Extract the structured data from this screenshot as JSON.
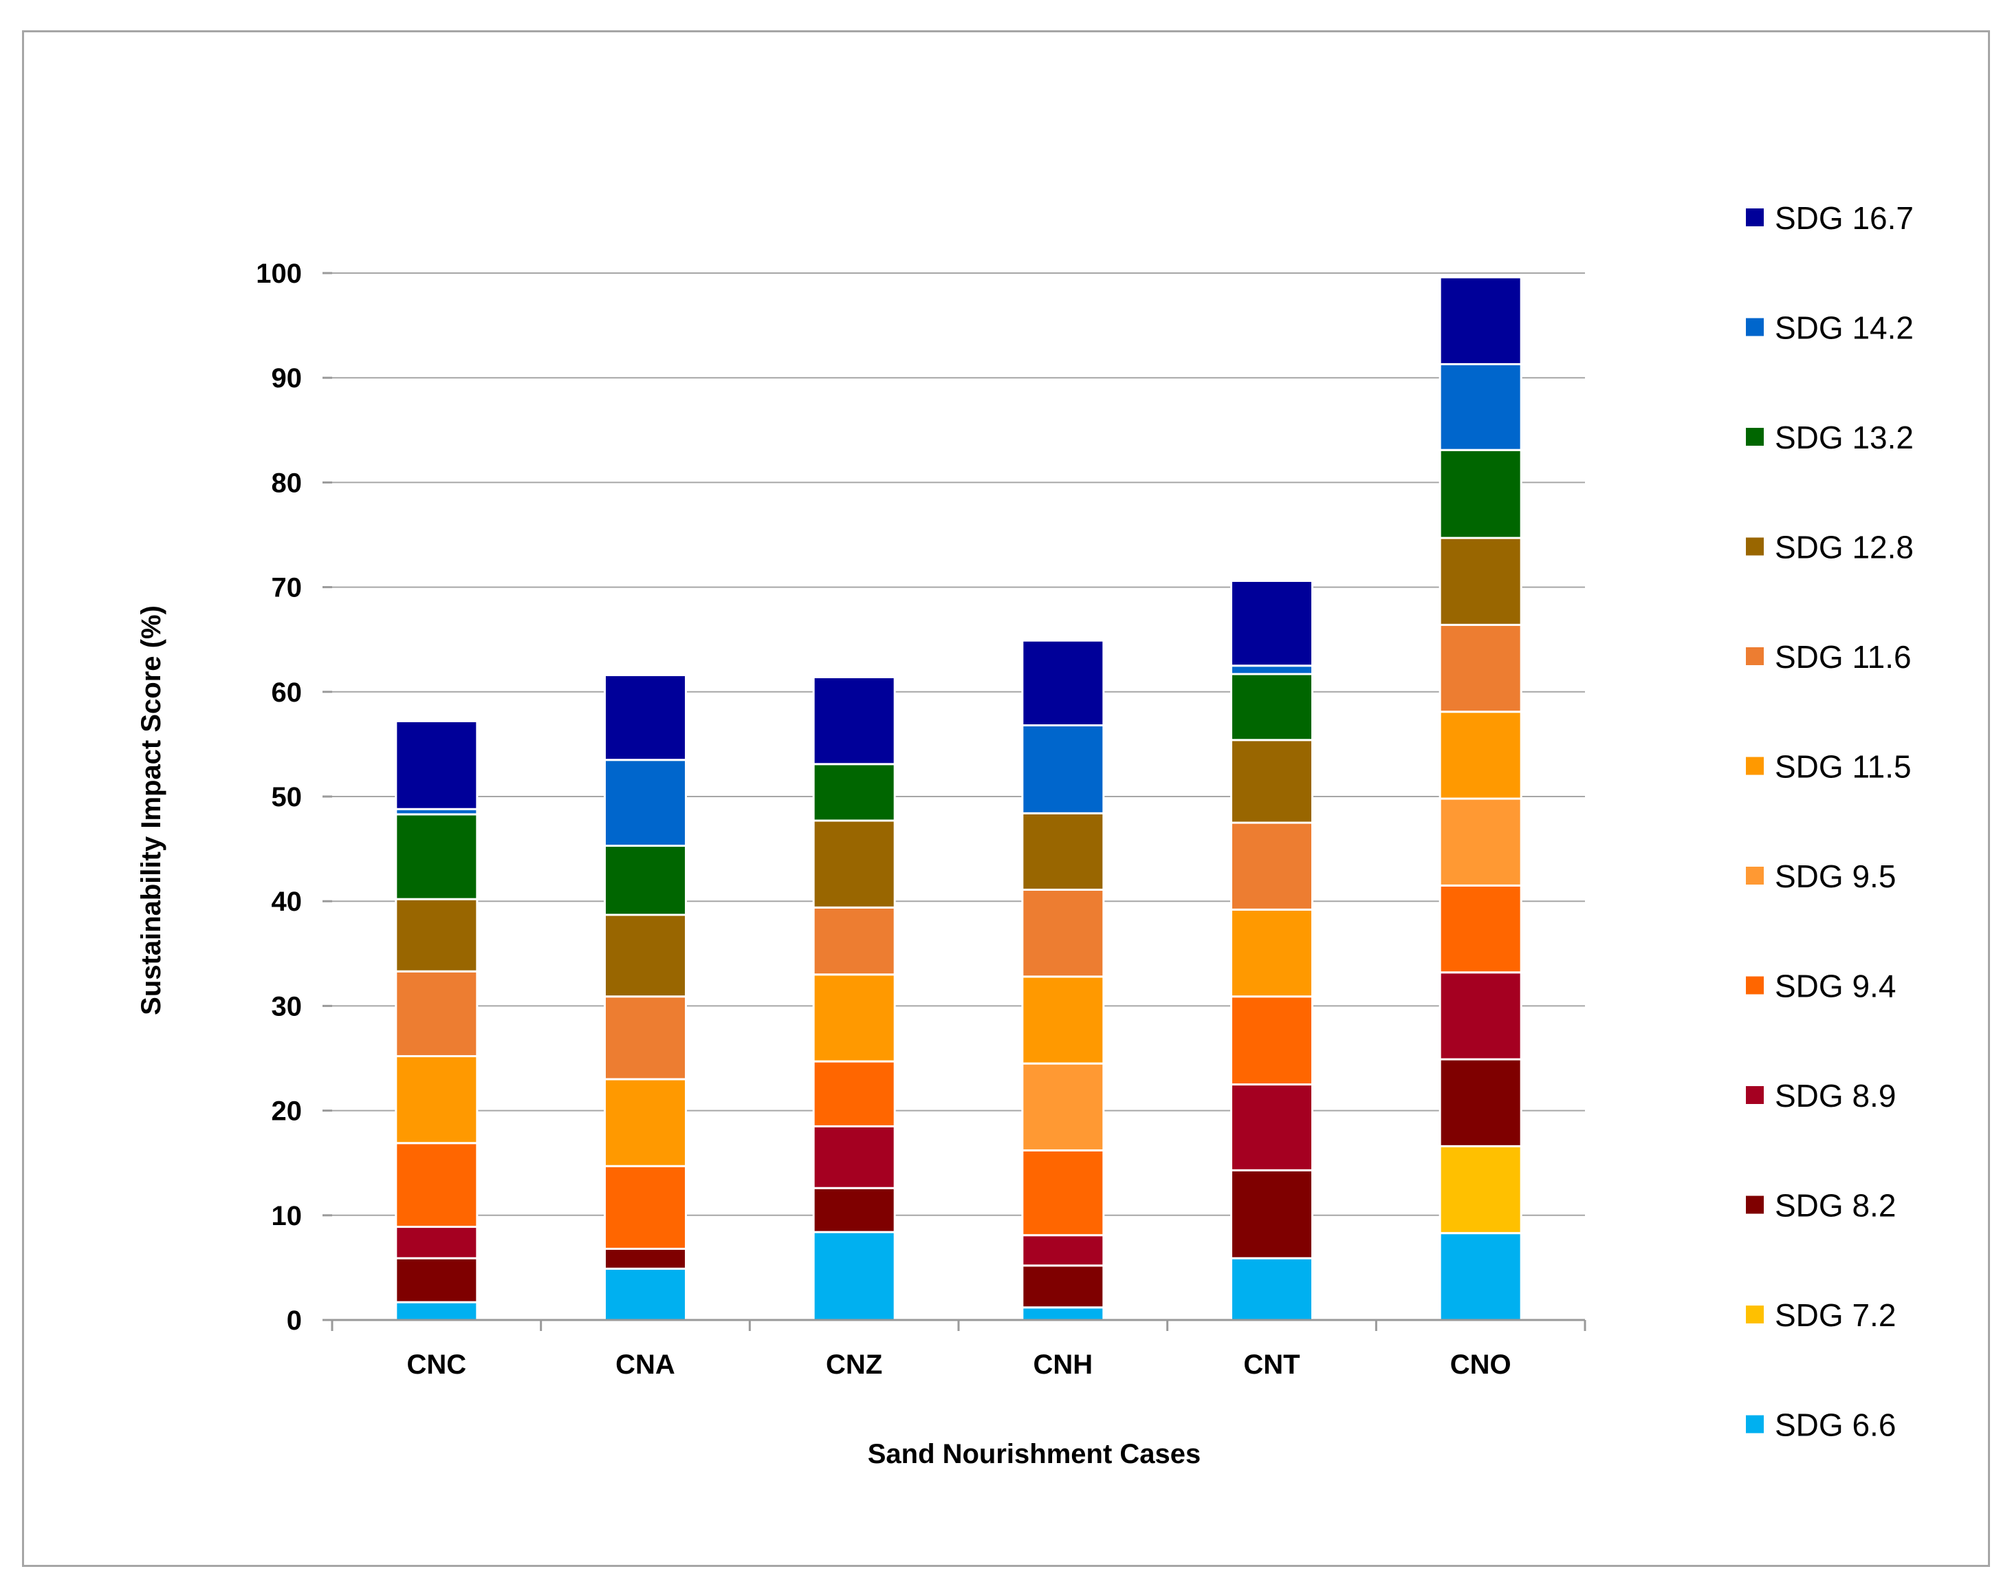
{
  "chart_data": {
    "type": "bar",
    "stacked": true,
    "title": "",
    "xlabel": "Sand Nourishment Cases",
    "ylabel": "Sustainability Impact Score (%)",
    "ylim": [
      0,
      100
    ],
    "yticks": [
      0,
      10,
      20,
      30,
      40,
      50,
      60,
      70,
      80,
      90,
      100
    ],
    "grid": true,
    "legend_position": "right",
    "categories": [
      "CNC",
      "CNA",
      "CNZ",
      "CNH",
      "CNT",
      "CNO"
    ],
    "series": [
      {
        "name": "SDG 6.6",
        "color": "#00b0f0",
        "values": [
          1.7,
          4.9,
          8.4,
          1.2,
          5.9,
          8.3
        ]
      },
      {
        "name": "SDG 7.2",
        "color": "#ffc000",
        "values": [
          0,
          0,
          0,
          0,
          0,
          8.3
        ]
      },
      {
        "name": "SDG 8.2",
        "color": "#7f0000",
        "values": [
          4.2,
          1.9,
          4.2,
          4.0,
          8.4,
          8.3
        ]
      },
      {
        "name": "SDG 8.9",
        "color": "#a50021",
        "values": [
          3.0,
          0,
          5.9,
          2.9,
          8.2,
          8.3
        ]
      },
      {
        "name": "SDG 9.4",
        "color": "#ff6600",
        "values": [
          8.0,
          7.9,
          6.2,
          8.1,
          8.4,
          8.3
        ]
      },
      {
        "name": "SDG 9.5",
        "color": "#ff9933",
        "values": [
          0,
          0,
          0,
          8.3,
          0,
          8.3
        ]
      },
      {
        "name": "SDG 11.5",
        "color": "#ff9900",
        "values": [
          8.3,
          8.3,
          8.3,
          8.3,
          8.3,
          8.3
        ]
      },
      {
        "name": "SDG 11.6",
        "color": "#ed7d31",
        "values": [
          8.1,
          7.9,
          6.4,
          8.3,
          8.3,
          8.3
        ]
      },
      {
        "name": "SDG 12.8",
        "color": "#996600",
        "values": [
          6.9,
          7.8,
          8.3,
          7.3,
          7.9,
          8.3
        ]
      },
      {
        "name": "SDG 13.2",
        "color": "#006600",
        "values": [
          8.1,
          6.6,
          5.4,
          0,
          6.3,
          8.4
        ]
      },
      {
        "name": "SDG 14.2",
        "color": "#0066cc",
        "values": [
          0.5,
          8.2,
          0,
          8.4,
          0.8,
          8.2
        ]
      },
      {
        "name": "SDG 16.7",
        "color": "#000099",
        "values": [
          8.4,
          8.1,
          8.3,
          8.1,
          8.1,
          8.3
        ]
      }
    ]
  }
}
